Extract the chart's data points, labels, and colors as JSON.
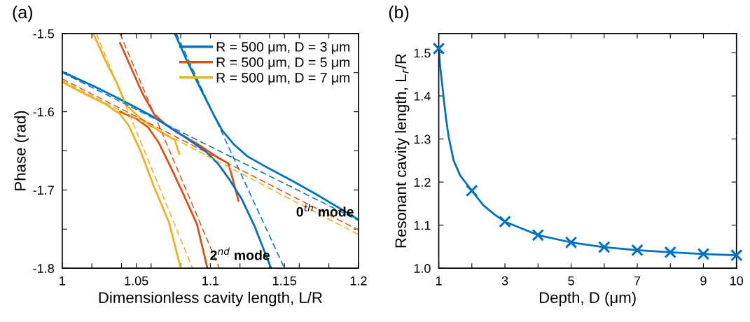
{
  "chart_data": [
    {
      "type": "line",
      "title": "(a)",
      "xlabel": "Dimensionless cavity length, L/R",
      "ylabel": "Phase (rad)",
      "xlim": [
        1,
        1.2
      ],
      "ylim": [
        -1.8,
        -1.5
      ],
      "xticks": [
        {
          "value": 1,
          "label": "1"
        },
        {
          "value": 1.02,
          "label": null
        },
        {
          "value": 1.04,
          "label": null
        },
        {
          "value": 1.05,
          "label": "1.05"
        },
        {
          "value": 1.06,
          "label": null
        },
        {
          "value": 1.08,
          "label": null
        },
        {
          "value": 1.1,
          "label": "1.1"
        },
        {
          "value": 1.12,
          "label": null
        },
        {
          "value": 1.14,
          "label": null
        },
        {
          "value": 1.15,
          "label": "1.15"
        },
        {
          "value": 1.16,
          "label": null
        },
        {
          "value": 1.18,
          "label": null
        },
        {
          "value": 1.2,
          "label": "1.2"
        }
      ],
      "yticks": [
        {
          "value": -1.8,
          "label": "-1.8"
        },
        {
          "value": -1.75,
          "label": null
        },
        {
          "value": -1.7,
          "label": "-1.7"
        },
        {
          "value": -1.65,
          "label": null
        },
        {
          "value": -1.6,
          "label": "-1.6"
        },
        {
          "value": -1.55,
          "label": null
        },
        {
          "value": -1.5,
          "label": "-1.5"
        }
      ],
      "grid": false,
      "legend": "top right",
      "series": [
        {
          "name": "R = 500 μm, D = 3 μm",
          "color": "#0072bd",
          "line_style": "solid",
          "x": [
            1.076,
            1.084,
            1.094,
            1.102,
            1.108,
            1.116,
            1.125,
            1.139,
            1.155,
            1.171,
            1.187,
            1.2
          ],
          "values": [
            -1.5,
            -1.534,
            -1.573,
            -1.603,
            -1.624,
            -1.642,
            -1.657,
            -1.672,
            -1.688,
            -1.705,
            -1.723,
            -1.738
          ]
        },
        {
          "name": "R = 500 μm, D = 5 μm",
          "color": "#d95319",
          "line_style": "solid",
          "x": [
            1.039,
            1.047,
            1.054,
            1.062,
            1.069,
            1.078,
            1.092,
            1.103,
            1.112,
            1.114,
            1.119
          ],
          "values": [
            -1.512,
            -1.546,
            -1.576,
            -1.603,
            -1.615,
            -1.627,
            -1.642,
            -1.656,
            -1.666,
            -1.678,
            -1.714
          ]
        },
        {
          "name": "R = 500 μm, D = 7 μm",
          "color": "#edb120",
          "line_style": "solid",
          "x": [
            1.021,
            1.029,
            1.037,
            1.043,
            1.053,
            1.065,
            1.076,
            1.079
          ],
          "values": [
            -1.5,
            -1.534,
            -1.564,
            -1.591,
            -1.609,
            -1.624,
            -1.636,
            -1.654
          ]
        },
        {
          "color": "#0072bd",
          "line_style": "solid",
          "x": [
            1,
            1.021,
            1.04,
            1.061,
            1.081,
            1.097,
            1.105,
            1.113,
            1.121,
            1.13,
            1.141
          ],
          "values": [
            -1.549,
            -1.567,
            -1.585,
            -1.606,
            -1.63,
            -1.651,
            -1.666,
            -1.687,
            -1.711,
            -1.747,
            -1.8
          ]
        },
        {
          "color": "#d95319",
          "line_style": "solid",
          "x": [
            1.039,
            1.05,
            1.058,
            1.065,
            1.072,
            1.081,
            1.091,
            1.098
          ],
          "values": [
            -1.6,
            -1.609,
            -1.62,
            -1.639,
            -1.666,
            -1.702,
            -1.744,
            -1.8
          ]
        },
        {
          "color": "#edb120",
          "line_style": "solid",
          "x": [
            1,
            1.013,
            1.029,
            1.039,
            1.045,
            1.053,
            1.062,
            1.072,
            1.08
          ],
          "values": [
            -1.562,
            -1.575,
            -1.59,
            -1.603,
            -1.618,
            -1.651,
            -1.696,
            -1.741,
            -1.8
          ]
        },
        {
          "color": "#0072bd",
          "line_style": "dashed",
          "x": [
            1,
            1.2
          ],
          "values": [
            -1.55,
            -1.739
          ]
        },
        {
          "color": "#0072bd",
          "line_style": "dashed",
          "x": [
            1.077,
            1.15
          ],
          "values": [
            -1.5,
            -1.8
          ]
        },
        {
          "color": "#d95319",
          "line_style": "dashed",
          "x": [
            1,
            1.2
          ],
          "values": [
            -1.558,
            -1.751
          ]
        },
        {
          "color": "#d95319",
          "line_style": "dashed",
          "x": [
            1.039,
            1.106
          ],
          "values": [
            -1.5,
            -1.8
          ]
        },
        {
          "color": "#edb120",
          "line_style": "dashed",
          "x": [
            1,
            1.2
          ],
          "values": [
            -1.56,
            -1.757
          ]
        },
        {
          "color": "#edb120",
          "line_style": "dashed",
          "x": [
            1.023,
            1.088
          ],
          "values": [
            -1.5,
            -1.8
          ]
        }
      ],
      "annotations": [
        "0$^{th}$ mode",
        "2$^{nd}$ mode"
      ]
    },
    {
      "type": "line",
      "title": "(b)",
      "xlabel": "Depth, D (μm)",
      "ylabel": "Resonant cavity length, L$_{r}$/R",
      "xlim": [
        1,
        10
      ],
      "ylim": [
        1.0,
        1.545
      ],
      "xticks": [
        1,
        {
          "value": 2,
          "label": null
        },
        3,
        {
          "value": 4,
          "label": null
        },
        5,
        {
          "value": 6,
          "label": null
        },
        7,
        {
          "value": 8,
          "label": null
        },
        9,
        10
      ],
      "yticks": [
        {
          "value": 1.0,
          "label": "1.0"
        },
        {
          "value": 1.1,
          "label": "1.1"
        },
        {
          "value": 1.2,
          "label": "1.2"
        },
        {
          "value": 1.3,
          "label": "1.3"
        },
        {
          "value": 1.4,
          "label": "1.4"
        },
        {
          "value": 1.5,
          "label": "1.5"
        }
      ],
      "grid": false,
      "legend": false,
      "series": [
        {
          "type": "line",
          "color": "#0072bd",
          "line_style": "solid",
          "marker": "none",
          "x": [
            1,
            1.04,
            1.085,
            1.155,
            1.225,
            1.3,
            1.45,
            1.65,
            2,
            2.35,
            2.7,
            3,
            4,
            5,
            6,
            7,
            8,
            9,
            10
          ],
          "values": [
            1.51,
            1.47,
            1.44,
            1.39,
            1.345,
            1.305,
            1.25,
            1.215,
            1.18,
            1.146,
            1.124,
            1.108,
            1.077,
            1.06,
            1.049,
            1.042,
            1.037,
            1.033,
            1.03
          ]
        },
        {
          "type": "scatter",
          "color": "#0072bd",
          "marker": "cross",
          "x": [
            1,
            2,
            3,
            4,
            5,
            6,
            7,
            8,
            9,
            10
          ],
          "values": [
            1.51,
            1.18,
            1.108,
            1.077,
            1.06,
            1.049,
            1.042,
            1.037,
            1.033,
            1.03
          ]
        }
      ]
    }
  ]
}
